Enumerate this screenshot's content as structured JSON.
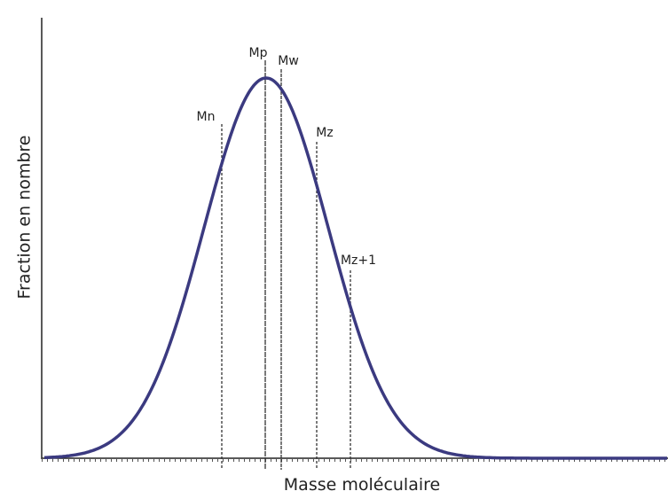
{
  "axes": {
    "x_label": "Masse moléculaire",
    "y_label": "Fraction en nombre"
  },
  "markers": [
    {
      "label": "Mn"
    },
    {
      "label": "Mp"
    },
    {
      "label": "Mw"
    },
    {
      "label": "Mz"
    },
    {
      "label": "Mz+1"
    }
  ]
}
